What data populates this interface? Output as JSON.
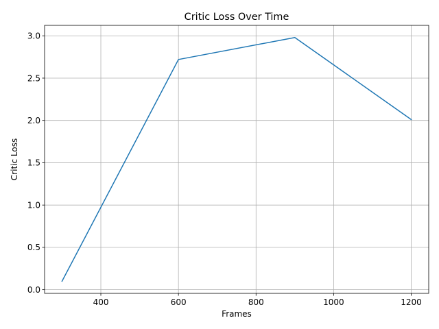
{
  "chart_data": {
    "type": "line",
    "title": "Critic Loss Over Time",
    "xlabel": "Frames",
    "ylabel": "Critic Loss",
    "xlim": [
      255,
      1245
    ],
    "ylim": [
      -0.0435,
      3.1235
    ],
    "xticks": [
      400,
      600,
      800,
      1000,
      1200
    ],
    "yticks": [
      0.0,
      0.5,
      1.0,
      1.5,
      2.0,
      2.5,
      3.0
    ],
    "grid": true,
    "series": [
      {
        "color": "#1f77b4",
        "x": [
          300,
          600,
          900,
          1200
        ],
        "y": [
          0.1,
          2.72,
          2.98,
          2.01
        ]
      }
    ]
  }
}
